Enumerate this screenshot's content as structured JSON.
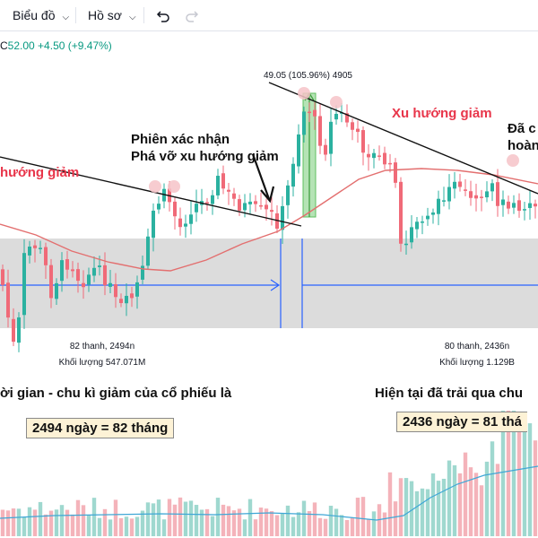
{
  "toolbar": {
    "chart_menu": "Biểu đồ",
    "profile_menu": "Hồ sơ",
    "undo_icon": "undo-icon",
    "redo_icon": "redo-icon"
  },
  "ohlc": {
    "close_label": "C",
    "close_value": "52.00",
    "change": "+4.50",
    "change_pct": "(+9.47%)"
  },
  "annotations": {
    "downtrend_left": "hướng giảm",
    "downtrend_right": "Xu hướng giảm",
    "breakout_line1": "Phiên xác nhận",
    "breakout_line2": "Phá vỡ xu hướng giảm",
    "top_right_line1": "Đã c",
    "top_right_line2": "hoàn",
    "rise_label": "49.05 (105.96%) 4905"
  },
  "measures": {
    "left": {
      "bars": "82 thanh, 2494n",
      "volume": "Khối lượng 547.071M"
    },
    "right": {
      "bars": "80 thanh, 2436n",
      "volume": "Khối lượng 1.129B"
    }
  },
  "captions": {
    "left": "ời gian - chu kì giảm của cổ phiếu là",
    "right": "Hiện tại đã trải qua chu",
    "box_left": "2494 ngày = 82 tháng",
    "box_right": "2436 ngày = 81 thá"
  },
  "colors": {
    "up": "#089981",
    "down": "#f23645",
    "candle_down": "#f06a78",
    "candle_up": "#2bb1a0",
    "ma": "#e36f6f",
    "range_zone": "#d9d9d9",
    "measure_line": "#2962ff",
    "rise_box": "#9bd99b"
  }
}
